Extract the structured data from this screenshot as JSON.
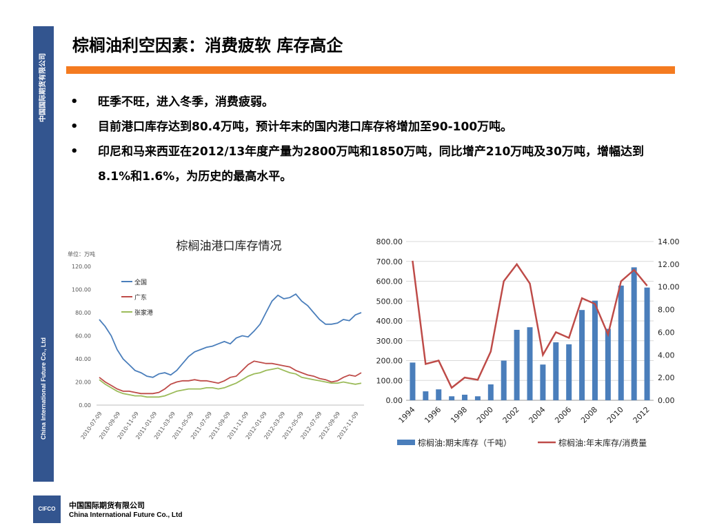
{
  "sidebar": {
    "company_cn": "中国国际期货有限公司",
    "company_en": "China International Future Co., Ltd",
    "color": "#33558f"
  },
  "title": "棕榈油利空因素：消费疲软 库存高企",
  "accent_color": "#f47b20",
  "bullets": [
    "旺季不旺，进入冬季，消费疲弱。",
    "目前港口库存达到80.4万吨，预计年末的国内港口库存将增加至90-100万吨。",
    "印尼和马来西亚在2012/13年度产量为2800万吨和1850万吨，同比增产210万吨及30万吨，增幅达到8.1%和1.6%，为历史的最高水平。"
  ],
  "chart_data": [
    {
      "type": "line",
      "title": "棕榈油港口库存情况",
      "unit_label": "单位：万吨",
      "ylim": [
        0,
        120
      ],
      "yticks": [
        "120.00",
        "100.00",
        "80.00",
        "60.00",
        "40.00",
        "20.00",
        "0.00"
      ],
      "x_tick_labels": [
        "2010-07-09",
        "2010-09-09",
        "2010-11-09",
        "2011-01-09",
        "2011-03-09",
        "2011-05-09",
        "2011-07-09",
        "2011-09-09",
        "2011-11-09",
        "2012-01-09",
        "2012-03-09",
        "2012-05-09",
        "2012-07-09",
        "2012-09-09",
        "2012-11-09"
      ],
      "legend_position": "top-left",
      "grid": false,
      "series": [
        {
          "name": "全国",
          "color": "#4a7ebb",
          "values": [
            74,
            68,
            60,
            48,
            40,
            35,
            30,
            28,
            25,
            24,
            27,
            28,
            26,
            30,
            36,
            42,
            46,
            48,
            50,
            51,
            53,
            55,
            53,
            58,
            60,
            59,
            64,
            70,
            80,
            90,
            95,
            92,
            93,
            96,
            90,
            86,
            80,
            74,
            70,
            70,
            71,
            74,
            73,
            78,
            80
          ]
        },
        {
          "name": "广东",
          "color": "#be4b48",
          "values": [
            24,
            20,
            17,
            14,
            12,
            12,
            11,
            10,
            10,
            10,
            11,
            14,
            18,
            20,
            21,
            21,
            22,
            21,
            21,
            20,
            19,
            21,
            24,
            25,
            30,
            35,
            38,
            37,
            36,
            36,
            35,
            34,
            33,
            30,
            28,
            26,
            25,
            23,
            22,
            20,
            21,
            24,
            26,
            25,
            28
          ]
        },
        {
          "name": "张家港",
          "color": "#9bbb59",
          "values": [
            22,
            18,
            15,
            12,
            10,
            9,
            8,
            8,
            7,
            7,
            7,
            8,
            10,
            12,
            13,
            14,
            14,
            14,
            15,
            15,
            14,
            15,
            17,
            19,
            22,
            25,
            27,
            28,
            30,
            31,
            32,
            30,
            28,
            27,
            24,
            23,
            22,
            21,
            20,
            19,
            19,
            20,
            19,
            18,
            19
          ]
        }
      ]
    },
    {
      "type": "bar+line",
      "ylim_left": [
        0,
        800
      ],
      "ylim_right": [
        0,
        14
      ],
      "yticks_left": [
        "800.00",
        "700.00",
        "600.00",
        "500.00",
        "400.00",
        "300.00",
        "200.00",
        "100.00",
        "0.00"
      ],
      "yticks_right": [
        "14.00",
        "12.00",
        "10.00",
        "8.00",
        "6.00",
        "4.00",
        "2.00",
        "0.00"
      ],
      "x": [
        1994,
        1995,
        1996,
        1997,
        1998,
        1999,
        2000,
        2001,
        2002,
        2003,
        2004,
        2005,
        2006,
        2007,
        2008,
        2009,
        2010,
        2011,
        2012
      ],
      "x_tick_labels": [
        "1994",
        "1996",
        "1998",
        "2000",
        "2002",
        "2004",
        "2006",
        "2008",
        "2010",
        "2012"
      ],
      "legend_position": "bottom",
      "series": [
        {
          "name": "棕榈油:期末库存（千吨）",
          "type": "bar",
          "axis": "left",
          "color": "#4a7ebb",
          "values": [
            190,
            45,
            55,
            20,
            28,
            20,
            80,
            200,
            355,
            368,
            180,
            292,
            282,
            455,
            502,
            360,
            578,
            670,
            568
          ]
        },
        {
          "name": "棕榈油:年末库存/消费量",
          "type": "line",
          "axis": "right",
          "color": "#be4b48",
          "values": [
            12.3,
            3.2,
            3.5,
            1.1,
            2.0,
            1.8,
            4.3,
            10.5,
            12.0,
            10.3,
            4.0,
            6.0,
            5.5,
            9.0,
            8.5,
            5.8,
            10.5,
            11.5,
            10.1
          ]
        }
      ]
    }
  ],
  "footer": {
    "logo_text": "CIFCO",
    "company_cn": "中国国际期货有限公司",
    "company_en": "China International Future Co., Ltd"
  }
}
